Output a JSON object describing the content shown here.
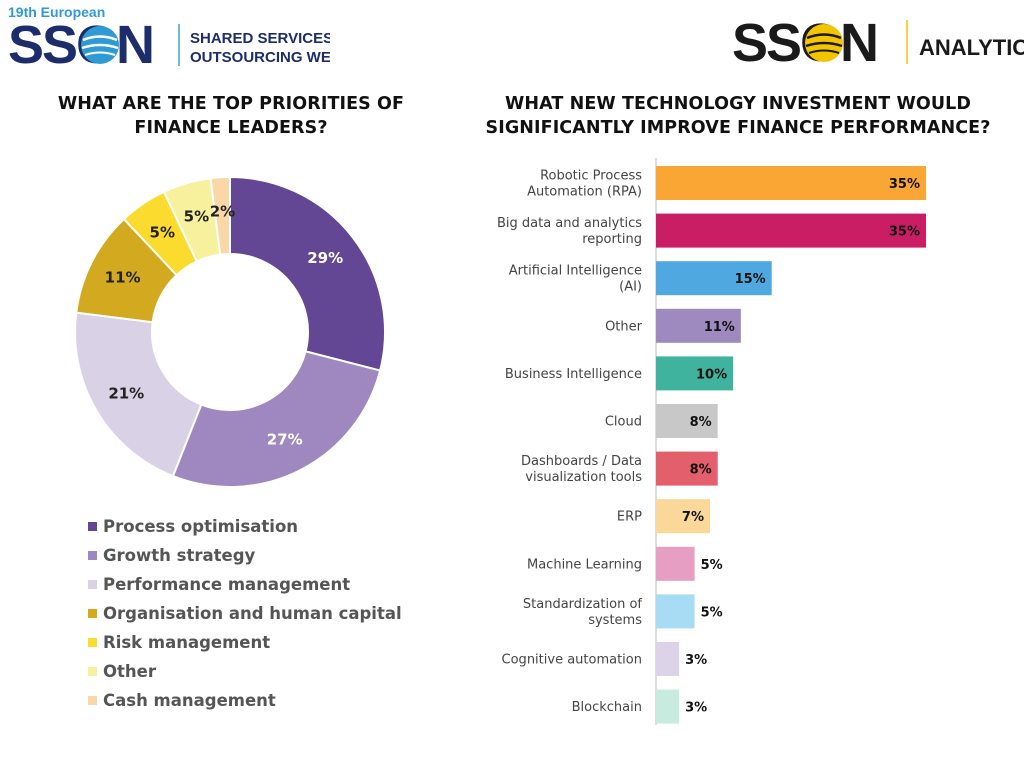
{
  "header": {
    "left_logo": {
      "edition": "19th European",
      "wordmark": "SSON",
      "event_line1": "SHARED SERVICES &",
      "event_line2": "OUTSOURCING WEEK"
    },
    "right_logo": {
      "wordmark": "SSON",
      "label": "ANALYTICS"
    },
    "colors": {
      "navy": "#1d2c6b",
      "blue": "#2e9bd6",
      "teal": "#3aa9c9",
      "black": "#1a1a1a",
      "yellow": "#f2c500"
    }
  },
  "chart_data": [
    {
      "type": "pie",
      "title": "WHAT ARE THE TOP PRIORITIES OF FINANCE LEADERS?",
      "donut": true,
      "legend_position": "bottom",
      "slices": [
        {
          "label": "Process optimisation",
          "value": 29,
          "display": "29%",
          "color": "#634694",
          "label_color": "#ffffff"
        },
        {
          "label": "Growth strategy",
          "value": 27,
          "display": "27%",
          "color": "#9f88bf",
          "label_color": "#ffffff"
        },
        {
          "label": "Performance management",
          "value": 21,
          "display": "21%",
          "color": "#d9d1e6",
          "label_color": "#222222"
        },
        {
          "label": "Organisation and human capital",
          "value": 11,
          "display": "11%",
          "color": "#d3aa1f",
          "label_color": "#222222"
        },
        {
          "label": "Risk management",
          "value": 5,
          "display": "5%",
          "color": "#fbdb2e",
          "label_color": "#222222"
        },
        {
          "label": "Other",
          "value": 5,
          "display": "5%",
          "color": "#f7f09d",
          "label_color": "#222222"
        },
        {
          "label": "Cash management",
          "value": 2,
          "display": "2%",
          "color": "#f9d8a6",
          "label_color": "#222222"
        }
      ]
    },
    {
      "type": "bar",
      "orientation": "horizontal",
      "title": "WHAT NEW TECHNOLOGY INVESTMENT WOULD SIGNIFICANTLY IMPROVE FINANCE PERFORMANCE?",
      "xlim": [
        0,
        35
      ],
      "grid": false,
      "bars": [
        {
          "label": [
            "Robotic Process",
            "Automation (RPA)"
          ],
          "value": 35,
          "display": "35%",
          "color": "#f9a634"
        },
        {
          "label": [
            "Big data and analytics",
            "reporting"
          ],
          "value": 35,
          "display": "35%",
          "color": "#c91e63"
        },
        {
          "label": [
            "Artificial Intelligence",
            "(AI)"
          ],
          "value": 15,
          "display": "15%",
          "color": "#4fa9e0"
        },
        {
          "label": [
            "Other"
          ],
          "value": 11,
          "display": "11%",
          "color": "#9f8abf"
        },
        {
          "label": [
            "Business Intelligence"
          ],
          "value": 10,
          "display": "10%",
          "color": "#3fb39e"
        },
        {
          "label": [
            "Cloud"
          ],
          "value": 8,
          "display": "8%",
          "color": "#c8c8c8"
        },
        {
          "label": [
            "Dashboards / Data",
            "visualization tools"
          ],
          "value": 8,
          "display": "8%",
          "color": "#e35f6b"
        },
        {
          "label": [
            "ERP"
          ],
          "value": 7,
          "display": "7%",
          "color": "#f9d89a"
        },
        {
          "label": [
            "Machine Learning"
          ],
          "value": 5,
          "display": "5%",
          "color": "#e69ec2"
        },
        {
          "label": [
            "Standardization of",
            "systems"
          ],
          "value": 5,
          "display": "5%",
          "color": "#a8dcf5"
        },
        {
          "label": [
            "Cognitive automation"
          ],
          "value": 3,
          "display": "3%",
          "color": "#dcd3e9"
        },
        {
          "label": [
            "Blockchain"
          ],
          "value": 3,
          "display": "3%",
          "color": "#c8ebe0"
        }
      ]
    }
  ]
}
